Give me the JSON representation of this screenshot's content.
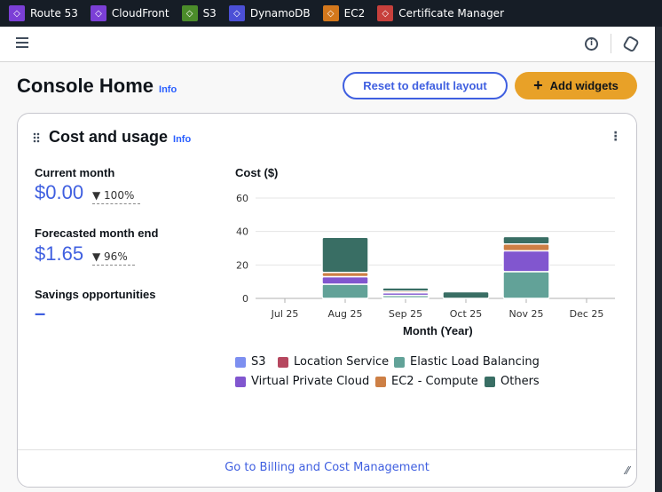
{
  "topbar": {
    "services": [
      {
        "label": "Route 53",
        "icon": "route53-icon",
        "color": "#7b3fd6"
      },
      {
        "label": "CloudFront",
        "icon": "cloudfront-icon",
        "color": "#7b3fd6"
      },
      {
        "label": "S3",
        "icon": "s3-icon",
        "color": "#4b8c2a"
      },
      {
        "label": "DynamoDB",
        "icon": "dynamodb-icon",
        "color": "#4b4fd6"
      },
      {
        "label": "EC2",
        "icon": "ec2-icon",
        "color": "#d4781c"
      },
      {
        "label": "Certificate Manager",
        "icon": "certificate-manager-icon",
        "color": "#c7403c"
      }
    ]
  },
  "page": {
    "title": "Console Home",
    "info": "Info",
    "reset_label": "Reset to default layout",
    "add_label": "Add widgets"
  },
  "widget": {
    "title": "Cost and usage",
    "info": "Info",
    "current_label": "Current month",
    "current_value": "$0.00",
    "current_change": "100%",
    "forecast_label": "Forecasted month end",
    "forecast_value": "$1.65",
    "forecast_change": "96%",
    "savings_label": "Savings opportunities",
    "savings_value": "–",
    "footer_link": "Go to Billing and Cost Management"
  },
  "chart_data": {
    "type": "bar",
    "stacked": true,
    "ylabel": "Cost ($)",
    "xlabel": "Month (Year)",
    "ylim": [
      0,
      60
    ],
    "yticks": [
      0,
      20,
      40,
      60
    ],
    "grid": true,
    "legend": "bottom",
    "categories": [
      "Jul 25",
      "Aug 25",
      "Sep 25",
      "Oct 25",
      "Nov 25",
      "Dec 25"
    ],
    "series": [
      {
        "name": "S3",
        "color": "#7d8ff0",
        "values": [
          0,
          0,
          0.3,
          0,
          0,
          0
        ]
      },
      {
        "name": "Location Service",
        "color": "#b6475f",
        "values": [
          0,
          0,
          0,
          0,
          0,
          0
        ]
      },
      {
        "name": "Elastic Load Balancing",
        "color": "#62a298",
        "values": [
          0,
          8.5,
          1.5,
          0,
          16,
          0
        ]
      },
      {
        "name": "Virtual Private Cloud",
        "color": "#8156cf",
        "values": [
          0,
          4.5,
          1.5,
          0,
          12.5,
          0
        ]
      },
      {
        "name": "EC2 - Compute",
        "color": "#cd7f45",
        "values": [
          0,
          2.5,
          1,
          0,
          4,
          0
        ]
      },
      {
        "name": "Others",
        "color": "#396e64",
        "values": [
          0,
          21,
          2,
          4,
          4.5,
          0
        ]
      }
    ]
  }
}
